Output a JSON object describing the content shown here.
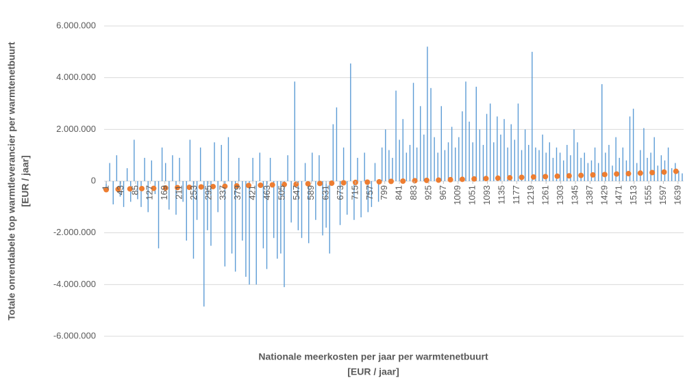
{
  "chart_data": {
    "type": "bar",
    "y_label": [
      "Totale onrendabele top warmtleverancier per warmtenetbuurt",
      "[EUR / jaar]"
    ],
    "x_label": [
      "Nationale meerkosten per jaar per warmtenetbuurt",
      "[EUR / jaar]"
    ],
    "xlim": [
      -5,
      1655
    ],
    "xticks": [
      1,
      43,
      85,
      127,
      169,
      211,
      253,
      295,
      337,
      379,
      421,
      463,
      505,
      547,
      589,
      631,
      673,
      715,
      757,
      799,
      841,
      883,
      925,
      967,
      1009,
      1051,
      1093,
      1135,
      1177,
      1219,
      1261,
      1303,
      1345,
      1387,
      1429,
      1471,
      1513,
      1555,
      1597,
      1639
    ],
    "ylim": [
      -6000000,
      6000000
    ],
    "yticks": [
      {
        "value": -6000000,
        "label": "-6.000.000"
      },
      {
        "value": -4000000,
        "label": "-4.000.000"
      },
      {
        "value": -2000000,
        "label": "-2.000.000"
      },
      0,
      {
        "value": 2000000,
        "label": "2.000.000"
      },
      {
        "value": 4000000,
        "label": "4.000.000"
      },
      {
        "value": 6000000,
        "label": "6.000.000"
      }
    ],
    "grid": true,
    "series": [
      {
        "type": "bar",
        "color": "#5b9bd5",
        "x": [
          1,
          11,
          21,
          31,
          41,
          51,
          61,
          71,
          81,
          91,
          101,
          111,
          121,
          131,
          141,
          151,
          161,
          171,
          181,
          191,
          201,
          211,
          221,
          231,
          241,
          251,
          261,
          271,
          281,
          291,
          301,
          311,
          321,
          331,
          341,
          351,
          361,
          371,
          381,
          391,
          401,
          411,
          421,
          431,
          441,
          451,
          461,
          471,
          481,
          491,
          501,
          511,
          521,
          531,
          541,
          551,
          561,
          571,
          581,
          591,
          601,
          611,
          621,
          631,
          641,
          651,
          661,
          671,
          681,
          691,
          701,
          711,
          721,
          731,
          741,
          751,
          761,
          771,
          781,
          791,
          801,
          811,
          821,
          831,
          841,
          851,
          861,
          871,
          881,
          891,
          901,
          911,
          921,
          931,
          941,
          951,
          961,
          971,
          981,
          991,
          1001,
          1011,
          1021,
          1031,
          1041,
          1051,
          1061,
          1071,
          1081,
          1091,
          1101,
          1111,
          1121,
          1131,
          1141,
          1151,
          1161,
          1171,
          1181,
          1191,
          1201,
          1211,
          1221,
          1231,
          1241,
          1251,
          1261,
          1271,
          1281,
          1291,
          1301,
          1311,
          1321,
          1331,
          1341,
          1351,
          1361,
          1371,
          1381,
          1391,
          1401,
          1411,
          1421,
          1431,
          1441,
          1451,
          1461,
          1471,
          1481,
          1491,
          1501,
          1511,
          1521,
          1531,
          1541,
          1551,
          1561,
          1571,
          1581,
          1591,
          1601,
          1611,
          1621,
          1631,
          1641,
          1651
        ],
        "values": [
          -300000,
          700000,
          -900000,
          1000000,
          -600000,
          -1000000,
          500000,
          -800000,
          1600000,
          -700000,
          -1000000,
          900000,
          -1200000,
          800000,
          -500000,
          -2600000,
          1300000,
          700000,
          -1100000,
          1000000,
          -1300000,
          900000,
          -800000,
          -2300000,
          1600000,
          -3000000,
          -1500000,
          1300000,
          -4850000,
          -1900000,
          -2500000,
          1500000,
          -1200000,
          1400000,
          -3300000,
          1700000,
          -2800000,
          -3500000,
          900000,
          -2300000,
          -3700000,
          -4000000,
          900000,
          -4000000,
          1100000,
          -2600000,
          -3400000,
          900000,
          -2200000,
          -3000000,
          -2800000,
          -4100000,
          1000000,
          -1600000,
          3850000,
          -1900000,
          -2200000,
          700000,
          -2400000,
          1100000,
          -1500000,
          1000000,
          -2100000,
          -1800000,
          -2800000,
          2200000,
          2850000,
          -1700000,
          1300000,
          -1300000,
          4550000,
          -1500000,
          900000,
          -1400000,
          1100000,
          -1200000,
          -1000000,
          700000,
          -800000,
          1300000,
          2000000,
          1200000,
          900000,
          3500000,
          1600000,
          2400000,
          1100000,
          1400000,
          3800000,
          1300000,
          2900000,
          1800000,
          5200000,
          3600000,
          1700000,
          1100000,
          2900000,
          1200000,
          1500000,
          2100000,
          1300000,
          1700000,
          2700000,
          3850000,
          2300000,
          1500000,
          3650000,
          2000000,
          1400000,
          2600000,
          3000000,
          1500000,
          2500000,
          1800000,
          2400000,
          1300000,
          2200000,
          1600000,
          3000000,
          1200000,
          2000000,
          1400000,
          5000000,
          1300000,
          1200000,
          1800000,
          1100000,
          1500000,
          900000,
          1300000,
          1100000,
          800000,
          1400000,
          1000000,
          2000000,
          1500000,
          900000,
          1100000,
          700000,
          800000,
          1300000,
          700000,
          3750000,
          1100000,
          1400000,
          600000,
          1700000,
          900000,
          1300000,
          800000,
          2500000,
          2800000,
          700000,
          1200000,
          2050000,
          900000,
          1100000,
          1700000,
          600000,
          1000000,
          800000,
          1300000,
          500000,
          700000,
          400000,
          300000
        ]
      },
      {
        "type": "scatter",
        "color": "#ed7d31",
        "x": [
          1,
          35,
          69,
          103,
          137,
          171,
          205,
          239,
          273,
          307,
          341,
          375,
          409,
          443,
          477,
          511,
          545,
          579,
          613,
          647,
          681,
          715,
          749,
          783,
          817,
          851,
          885,
          919,
          953,
          987,
          1021,
          1055,
          1089,
          1123,
          1157,
          1191,
          1225,
          1259,
          1293,
          1327,
          1361,
          1395,
          1429,
          1463,
          1497,
          1531,
          1565,
          1599,
          1633
        ],
        "values": [
          -330000,
          -315000,
          -300000,
          -290000,
          -280000,
          -265000,
          -250000,
          -240000,
          -225000,
          -210000,
          -200000,
          -185000,
          -170000,
          -160000,
          -145000,
          -130000,
          -120000,
          -105000,
          -90000,
          -80000,
          -65000,
          -50000,
          -40000,
          -25000,
          -10000,
          0,
          15000,
          30000,
          40000,
          55000,
          70000,
          85000,
          100000,
          115000,
          130000,
          145000,
          160000,
          175000,
          190000,
          205000,
          220000,
          240000,
          255000,
          275000,
          290000,
          310000,
          330000,
          350000,
          380000
        ]
      }
    ]
  }
}
